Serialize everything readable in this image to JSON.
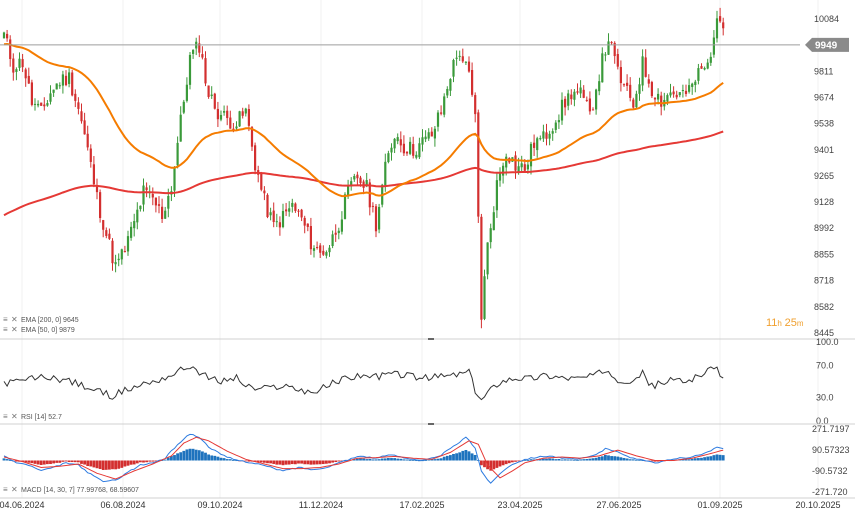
{
  "chart_data": [
    {
      "type": "candlestick",
      "title": "",
      "xlabel": "",
      "ylabel": "",
      "ylim": [
        8445,
        10150
      ],
      "y_ticks": [
        "10084",
        "9811",
        "9674",
        "9538",
        "9401",
        "9265",
        "9128",
        "8992",
        "8855",
        "8718",
        "8582",
        "8445"
      ],
      "current_price": "9949",
      "countdown": {
        "hours": "11",
        "h_unit": "h",
        "minutes": "25",
        "m_unit": "m"
      },
      "x_ticks": [
        "04.06.2024",
        "06.08.2024",
        "09.10.2024",
        "11.12.2024",
        "17.02.2025",
        "23.04.2025",
        "27.06.2025",
        "01.09.2025",
        "20.10.2025"
      ],
      "legend": [
        {
          "label": "EMA [200, 0]",
          "value": "9645",
          "color": "#e53935"
        },
        {
          "label": "EMA [50, 0]",
          "value": "9879",
          "color": "#f57c00"
        }
      ],
      "close_anchors": [
        [
          0,
          10000
        ],
        [
          3,
          9840
        ],
        [
          6,
          9860
        ],
        [
          9,
          9650
        ],
        [
          12,
          9590
        ],
        [
          15,
          9700
        ],
        [
          18,
          9760
        ],
        [
          21,
          9780
        ],
        [
          24,
          9620
        ],
        [
          27,
          9400
        ],
        [
          30,
          9150
        ],
        [
          33,
          8960
        ],
        [
          36,
          8790
        ],
        [
          39,
          8880
        ],
        [
          42,
          9020
        ],
        [
          45,
          9180
        ],
        [
          48,
          9140
        ],
        [
          51,
          9060
        ],
        [
          54,
          9210
        ],
        [
          57,
          9550
        ],
        [
          60,
          9880
        ],
        [
          63,
          9950
        ],
        [
          66,
          9690
        ],
        [
          69,
          9600
        ],
        [
          72,
          9560
        ],
        [
          75,
          9540
        ],
        [
          78,
          9600
        ],
        [
          81,
          9330
        ],
        [
          84,
          9130
        ],
        [
          87,
          9000
        ],
        [
          90,
          9050
        ],
        [
          93,
          9110
        ],
        [
          96,
          9040
        ],
        [
          99,
          8920
        ],
        [
          102,
          8860
        ],
        [
          105,
          8900
        ],
        [
          108,
          9020
        ],
        [
          111,
          9180
        ],
        [
          114,
          9260
        ],
        [
          117,
          9200
        ],
        [
          120,
          9020
        ],
        [
          123,
          9300
        ],
        [
          126,
          9490
        ],
        [
          129,
          9420
        ],
        [
          132,
          9400
        ],
        [
          135,
          9440
        ],
        [
          138,
          9480
        ],
        [
          141,
          9600
        ],
        [
          144,
          9800
        ],
        [
          147,
          9920
        ],
        [
          150,
          9780
        ],
        [
          152,
          9560
        ],
        [
          154,
          8540
        ],
        [
          156,
          8900
        ],
        [
          159,
          9220
        ],
        [
          162,
          9400
        ],
        [
          165,
          9320
        ],
        [
          168,
          9300
        ],
        [
          171,
          9440
        ],
        [
          174,
          9460
        ],
        [
          177,
          9540
        ],
        [
          180,
          9620
        ],
        [
          183,
          9700
        ],
        [
          186,
          9690
        ],
        [
          189,
          9580
        ],
        [
          192,
          9800
        ],
        [
          195,
          9990
        ],
        [
          197,
          9860
        ],
        [
          200,
          9720
        ],
        [
          203,
          9640
        ],
        [
          206,
          9850
        ],
        [
          209,
          9720
        ],
        [
          212,
          9660
        ],
        [
          215,
          9700
        ],
        [
          218,
          9690
        ],
        [
          221,
          9700
        ],
        [
          224,
          9800
        ],
        [
          227,
          9840
        ],
        [
          229,
          10010
        ],
        [
          231,
          10080
        ]
      ],
      "rsi": {
        "label": "RSI [14]",
        "value": "52.7",
        "ylim": [
          0,
          100
        ],
        "y_ticks": [
          "100.0",
          "70.0",
          "30.0",
          "0.0"
        ],
        "anchors": [
          [
            0,
            48
          ],
          [
            5,
            50
          ],
          [
            10,
            55
          ],
          [
            15,
            55
          ],
          [
            20,
            52
          ],
          [
            25,
            45
          ],
          [
            30,
            38
          ],
          [
            35,
            32
          ],
          [
            40,
            40
          ],
          [
            45,
            47
          ],
          [
            50,
            52
          ],
          [
            55,
            60
          ],
          [
            60,
            70
          ],
          [
            63,
            62
          ],
          [
            66,
            54
          ],
          [
            70,
            50
          ],
          [
            75,
            55
          ],
          [
            78,
            44
          ],
          [
            82,
            40
          ],
          [
            86,
            42
          ],
          [
            90,
            45
          ],
          [
            95,
            40
          ],
          [
            100,
            36
          ],
          [
            105,
            46
          ],
          [
            110,
            54
          ],
          [
            115,
            58
          ],
          [
            120,
            56
          ],
          [
            125,
            60
          ],
          [
            130,
            58
          ],
          [
            135,
            54
          ],
          [
            140,
            56
          ],
          [
            145,
            58
          ],
          [
            150,
            62
          ],
          [
            152,
            38
          ],
          [
            154,
            26
          ],
          [
            156,
            36
          ],
          [
            160,
            50
          ],
          [
            165,
            55
          ],
          [
            170,
            54
          ],
          [
            175,
            58
          ],
          [
            180,
            55
          ],
          [
            185,
            54
          ],
          [
            190,
            57
          ],
          [
            195,
            65
          ],
          [
            198,
            52
          ],
          [
            202,
            52
          ],
          [
            206,
            60
          ],
          [
            209,
            44
          ],
          [
            212,
            48
          ],
          [
            216,
            52
          ],
          [
            220,
            50
          ],
          [
            224,
            58
          ],
          [
            228,
            64
          ],
          [
            230,
            68
          ],
          [
            232,
            53
          ]
        ]
      },
      "macd": {
        "label": "MACD [14, 30, 7]",
        "values": [
          "77.99768",
          "68.59607"
        ],
        "ylim": [
          -271.72,
          271.7197
        ],
        "y_ticks": [
          "271.7197",
          "90.57323",
          "-90.5732",
          "-271.720"
        ],
        "macd_anchors": [
          [
            0,
            40
          ],
          [
            4,
            -20
          ],
          [
            8,
            -40
          ],
          [
            12,
            -90
          ],
          [
            16,
            -60
          ],
          [
            20,
            -20
          ],
          [
            24,
            -40
          ],
          [
            28,
            -120
          ],
          [
            32,
            -180
          ],
          [
            36,
            -170
          ],
          [
            40,
            -100
          ],
          [
            44,
            -40
          ],
          [
            48,
            -20
          ],
          [
            52,
            20
          ],
          [
            56,
            140
          ],
          [
            60,
            230
          ],
          [
            63,
            200
          ],
          [
            66,
            120
          ],
          [
            70,
            50
          ],
          [
            74,
            10
          ],
          [
            78,
            -10
          ],
          [
            82,
            -30
          ],
          [
            86,
            -60
          ],
          [
            90,
            -90
          ],
          [
            95,
            -60
          ],
          [
            100,
            -80
          ],
          [
            105,
            -50
          ],
          [
            110,
            0
          ],
          [
            115,
            40
          ],
          [
            120,
            20
          ],
          [
            125,
            50
          ],
          [
            130,
            20
          ],
          [
            135,
            0
          ],
          [
            140,
            30
          ],
          [
            145,
            120
          ],
          [
            149,
            200
          ],
          [
            152,
            110
          ],
          [
            154,
            -90
          ],
          [
            157,
            -200
          ],
          [
            160,
            -110
          ],
          [
            164,
            -30
          ],
          [
            168,
            10
          ],
          [
            172,
            30
          ],
          [
            176,
            40
          ],
          [
            180,
            20
          ],
          [
            185,
            10
          ],
          [
            190,
            40
          ],
          [
            194,
            100
          ],
          [
            198,
            80
          ],
          [
            202,
            20
          ],
          [
            206,
            10
          ],
          [
            210,
            -20
          ],
          [
            214,
            0
          ],
          [
            218,
            20
          ],
          [
            222,
            30
          ],
          [
            226,
            60
          ],
          [
            230,
            110
          ],
          [
            232,
            100
          ]
        ],
        "signal_anchors": [
          [
            0,
            30
          ],
          [
            6,
            -10
          ],
          [
            12,
            -60
          ],
          [
            18,
            -50
          ],
          [
            24,
            -30
          ],
          [
            30,
            -110
          ],
          [
            36,
            -160
          ],
          [
            42,
            -90
          ],
          [
            48,
            -30
          ],
          [
            54,
            40
          ],
          [
            58,
            150
          ],
          [
            62,
            200
          ],
          [
            66,
            170
          ],
          [
            72,
            80
          ],
          [
            78,
            10
          ],
          [
            84,
            -30
          ],
          [
            90,
            -70
          ],
          [
            96,
            -70
          ],
          [
            102,
            -60
          ],
          [
            108,
            -30
          ],
          [
            114,
            20
          ],
          [
            120,
            25
          ],
          [
            126,
            35
          ],
          [
            132,
            20
          ],
          [
            138,
            10
          ],
          [
            144,
            70
          ],
          [
            150,
            170
          ],
          [
            153,
            140
          ],
          [
            156,
            -40
          ],
          [
            160,
            -150
          ],
          [
            164,
            -90
          ],
          [
            168,
            -20
          ],
          [
            174,
            20
          ],
          [
            180,
            30
          ],
          [
            186,
            20
          ],
          [
            192,
            40
          ],
          [
            198,
            90
          ],
          [
            204,
            40
          ],
          [
            210,
            0
          ],
          [
            216,
            0
          ],
          [
            222,
            20
          ],
          [
            228,
            60
          ],
          [
            232,
            90
          ]
        ]
      }
    }
  ]
}
